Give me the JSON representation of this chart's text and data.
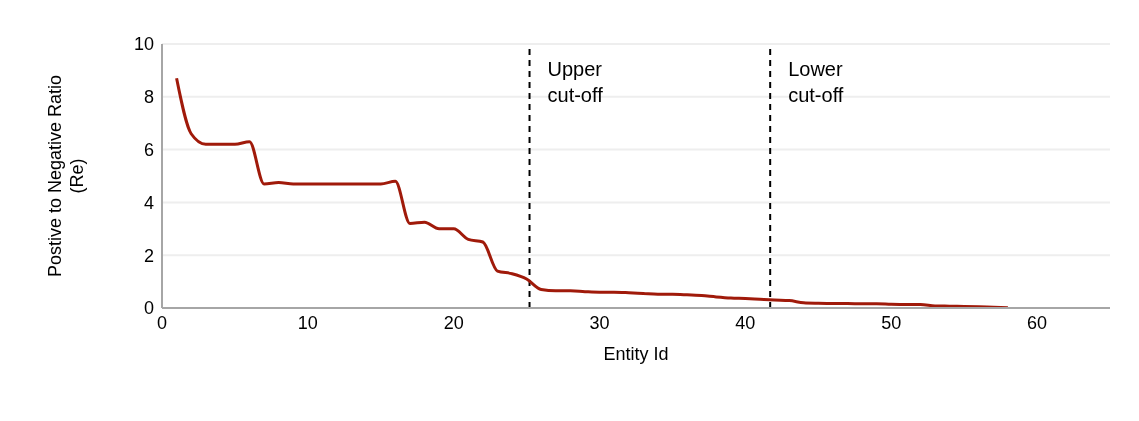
{
  "chart_data": {
    "type": "line",
    "xlabel": "Entity Id",
    "ylabel": "Postive to Negative Ratio\n(Re)",
    "x": [
      1,
      2,
      3,
      4,
      5,
      6,
      7,
      8,
      9,
      10,
      11,
      12,
      13,
      14,
      15,
      16,
      17,
      18,
      19,
      20,
      21,
      22,
      23,
      24,
      25,
      26,
      27,
      28,
      29,
      30,
      31,
      32,
      33,
      34,
      35,
      36,
      37,
      38,
      39,
      40,
      41,
      42,
      43,
      44,
      45,
      46,
      47,
      48,
      49,
      50,
      51,
      52,
      53,
      54,
      55,
      56,
      57,
      58
    ],
    "series": [
      {
        "color": "#a01a0a",
        "values": [
          8.7,
          6.6,
          6.2,
          6.2,
          6.2,
          6.3,
          4.7,
          4.75,
          4.7,
          4.7,
          4.7,
          4.7,
          4.7,
          4.7,
          4.7,
          4.8,
          3.2,
          3.25,
          3.0,
          3.0,
          2.6,
          2.5,
          1.4,
          1.3,
          1.1,
          0.7,
          0.65,
          0.65,
          0.62,
          0.6,
          0.6,
          0.58,
          0.55,
          0.52,
          0.52,
          0.5,
          0.47,
          0.42,
          0.38,
          0.36,
          0.33,
          0.3,
          0.28,
          0.2,
          0.18,
          0.17,
          0.17,
          0.16,
          0.16,
          0.14,
          0.13,
          0.13,
          0.08,
          0.07,
          0.06,
          0.05,
          0.03,
          0.01
        ]
      }
    ],
    "xlim": [
      0,
      65
    ],
    "xticks": [
      0,
      10,
      20,
      30,
      40,
      50,
      60
    ],
    "ylim": [
      0,
      10
    ],
    "yticks": [
      0,
      2,
      4,
      6,
      8,
      10
    ],
    "grid": "y",
    "legend": false,
    "marker": "none",
    "line_style": "solid",
    "ref_lines": [
      {
        "axis": "x",
        "value": 25.2,
        "label": "Upper\ncut-off",
        "color": "#000000",
        "line_style": "dashed"
      },
      {
        "axis": "x",
        "value": 41.7,
        "label": "Lower\ncut-off",
        "color": "#000000",
        "line_style": "dashed"
      }
    ]
  }
}
